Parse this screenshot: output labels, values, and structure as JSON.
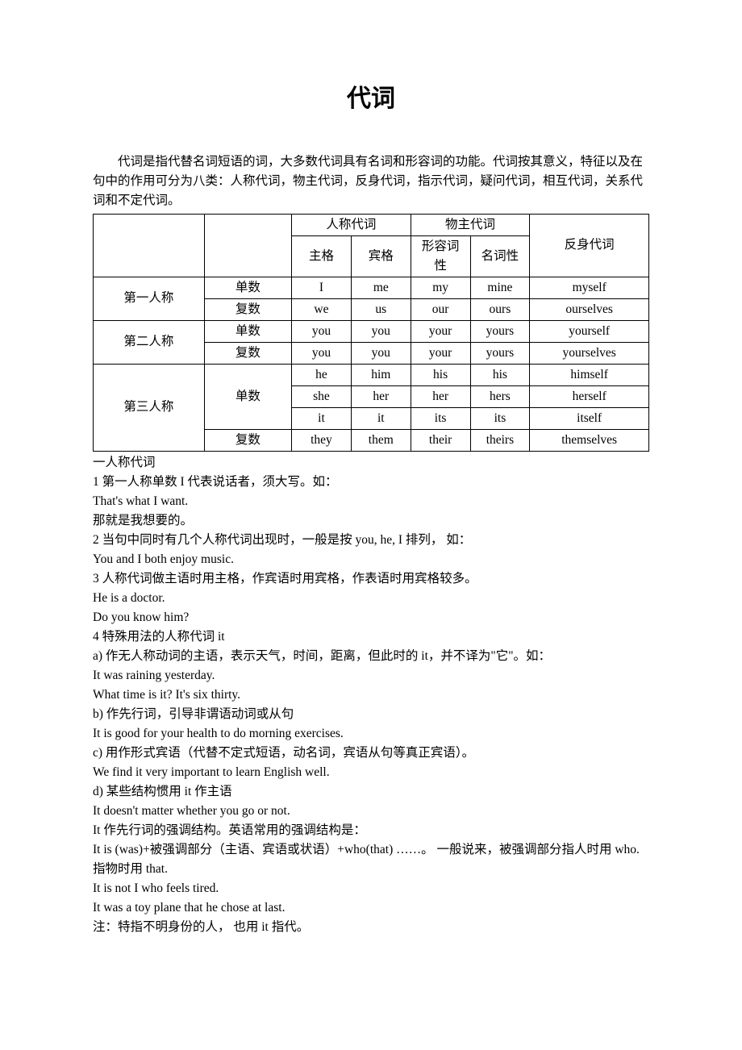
{
  "title": "代词",
  "intro": "代词是指代替名词短语的词，大多数代词具有名词和形容词的功能。代词按其意义，特征以及在句中的作用可分为八类：人称代词，物主代词，反身代词，指示代词，疑问代词，相互代词，关系代词和不定代词。",
  "table": {
    "headers": {
      "personal_pronoun": "人称代词",
      "possessive_pronoun": "物主代词",
      "reflexive_pronoun": "反身代词",
      "subjective": "主格",
      "objective": "宾格",
      "adjectival_line1": "形容词",
      "adjectival_line2": "性",
      "nominal": "名词性"
    },
    "row_headers": {
      "first_person": "第一人称",
      "second_person": "第二人称",
      "third_person": "第三人称",
      "singular": "单数",
      "plural": "复数"
    },
    "rows": {
      "first_singular": [
        "I",
        "me",
        "my",
        "mine",
        "myself"
      ],
      "first_plural": [
        "we",
        "us",
        "our",
        "ours",
        "ourselves"
      ],
      "second_singular": [
        "you",
        "you",
        "your",
        "yours",
        "yourself"
      ],
      "second_plural": [
        "you",
        "you",
        "your",
        "yours",
        "yourselves"
      ],
      "third_he": [
        "he",
        "him",
        "his",
        "his",
        "himself"
      ],
      "third_she": [
        "she",
        "her",
        "her",
        "hers",
        "herself"
      ],
      "third_it": [
        "it",
        "it",
        "its",
        "its",
        "itself"
      ],
      "third_plural": [
        "they",
        "them",
        "their",
        "theirs",
        "themselves"
      ]
    }
  },
  "body": {
    "l01": "一人称代词",
    "l02": "1 第一人称单数 I 代表说话者，须大写。如：",
    "l03": "That's what I want.",
    "l04": "那就是我想要的。",
    "l05": "2 当句中同时有几个人称代词出现时，一般是按 you, he, I 排列， 如：",
    "l06": "You and I both enjoy music.",
    "l07": "3 人称代词做主语时用主格，作宾语时用宾格，作表语时用宾格较多。",
    "l08": "He is a doctor.",
    "l09": "Do you know him?",
    "l10": "4  特殊用法的人称代词 it",
    "l11": "a)  作无人称动词的主语，表示天气，时间，距离，但此时的 it，并不译为\"它\"。如：",
    "l12": "It was raining yesterday.",
    "l13": "What time is it?    It's six thirty.",
    "l14": "b)  作先行词，引导非谓语动词或从句",
    "l15": "It is good for your health to do morning exercises.",
    "l16": "c)  用作形式宾语（代替不定式短语，动名词，宾语从句等真正宾语）。",
    "l17": "We find it very important to learn English well.",
    "l18": "d)  某些结构惯用 it  作主语",
    "l19": "It doesn't matter whether you go or not.",
    "l20": "It  作先行词的强调结构。英语常用的强调结构是：",
    "l21": "It is (was)+被强调部分（主语、宾语或状语）+who(that) ……。   一般说来，被强调部分指人时用 who.  指物时用 that.",
    "l22": "It is not I who feels tired.",
    "l23": "It was a toy plane that he chose at last.",
    "l24": "注：特指不明身份的人， 也用 it  指代。"
  }
}
